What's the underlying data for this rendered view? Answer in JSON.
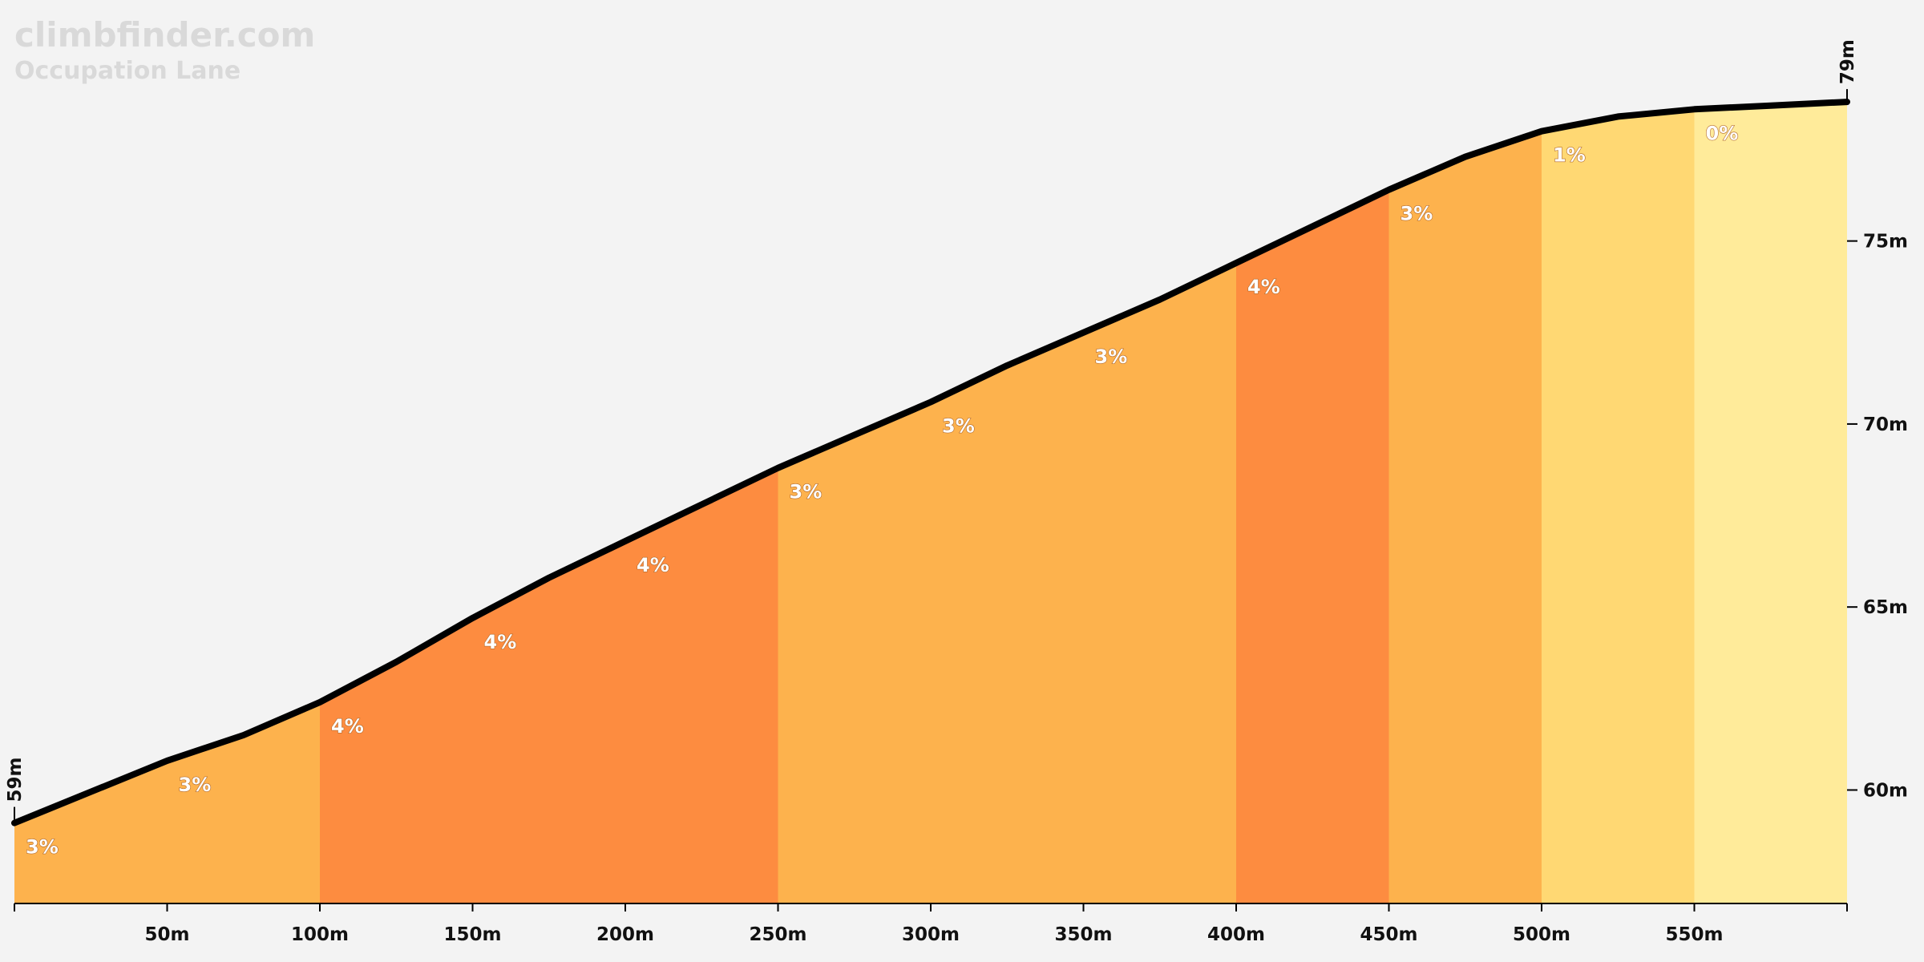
{
  "watermark": {
    "brand": "climbfinder.com",
    "climb_name": "Occupation Lane"
  },
  "colors": {
    "background": "#f3f3f3",
    "profile_line": "#000000",
    "grade_0": "#ffeb9a",
    "grade_1": "#ffd873",
    "grade_3": "#fdb24d",
    "grade_4": "#fd8c40"
  },
  "chart_data": {
    "type": "area",
    "title": "",
    "xlabel": "",
    "ylabel": "",
    "xlim": [
      0,
      600
    ],
    "ylim": [
      56.9,
      79
    ],
    "x_ticks": [
      50,
      100,
      150,
      200,
      250,
      300,
      350,
      400,
      450,
      500,
      550,
      600
    ],
    "x_tick_labels": [
      "50m",
      "100m",
      "150m",
      "200m",
      "250m",
      "300m",
      "350m",
      "400m",
      "450m",
      "500m",
      "550m",
      ""
    ],
    "y_ticks": [
      60,
      65,
      70,
      75
    ],
    "y_tick_labels": [
      "60m",
      "65m",
      "70m",
      "75m"
    ],
    "start_elevation_label": "59m",
    "end_elevation_label": "79m",
    "profile": {
      "x": [
        0,
        50,
        75,
        100,
        125,
        150,
        175,
        200,
        225,
        250,
        275,
        300,
        325,
        350,
        375,
        400,
        425,
        450,
        475,
        500,
        525,
        550,
        575,
        600
      ],
      "y": [
        59.1,
        60.8,
        61.5,
        62.4,
        63.5,
        64.7,
        65.8,
        66.8,
        67.8,
        68.8,
        69.7,
        70.6,
        71.6,
        72.5,
        73.4,
        74.4,
        75.4,
        76.4,
        77.3,
        78.0,
        78.4,
        78.6,
        78.7,
        78.8
      ]
    },
    "segments": [
      {
        "start": 0,
        "end": 50,
        "grade": "3%",
        "color": "grade_3"
      },
      {
        "start": 50,
        "end": 100,
        "grade": "3%",
        "color": "grade_3"
      },
      {
        "start": 100,
        "end": 150,
        "grade": "4%",
        "color": "grade_4"
      },
      {
        "start": 150,
        "end": 200,
        "grade": "4%",
        "color": "grade_4"
      },
      {
        "start": 200,
        "end": 250,
        "grade": "4%",
        "color": "grade_4"
      },
      {
        "start": 250,
        "end": 300,
        "grade": "3%",
        "color": "grade_3"
      },
      {
        "start": 300,
        "end": 350,
        "grade": "3%",
        "color": "grade_3"
      },
      {
        "start": 350,
        "end": 400,
        "grade": "3%",
        "color": "grade_3"
      },
      {
        "start": 400,
        "end": 450,
        "grade": "4%",
        "color": "grade_4"
      },
      {
        "start": 450,
        "end": 500,
        "grade": "3%",
        "color": "grade_3"
      },
      {
        "start": 500,
        "end": 550,
        "grade": "1%",
        "color": "grade_1"
      },
      {
        "start": 550,
        "end": 600,
        "grade": "0%",
        "color": "grade_0"
      }
    ]
  }
}
